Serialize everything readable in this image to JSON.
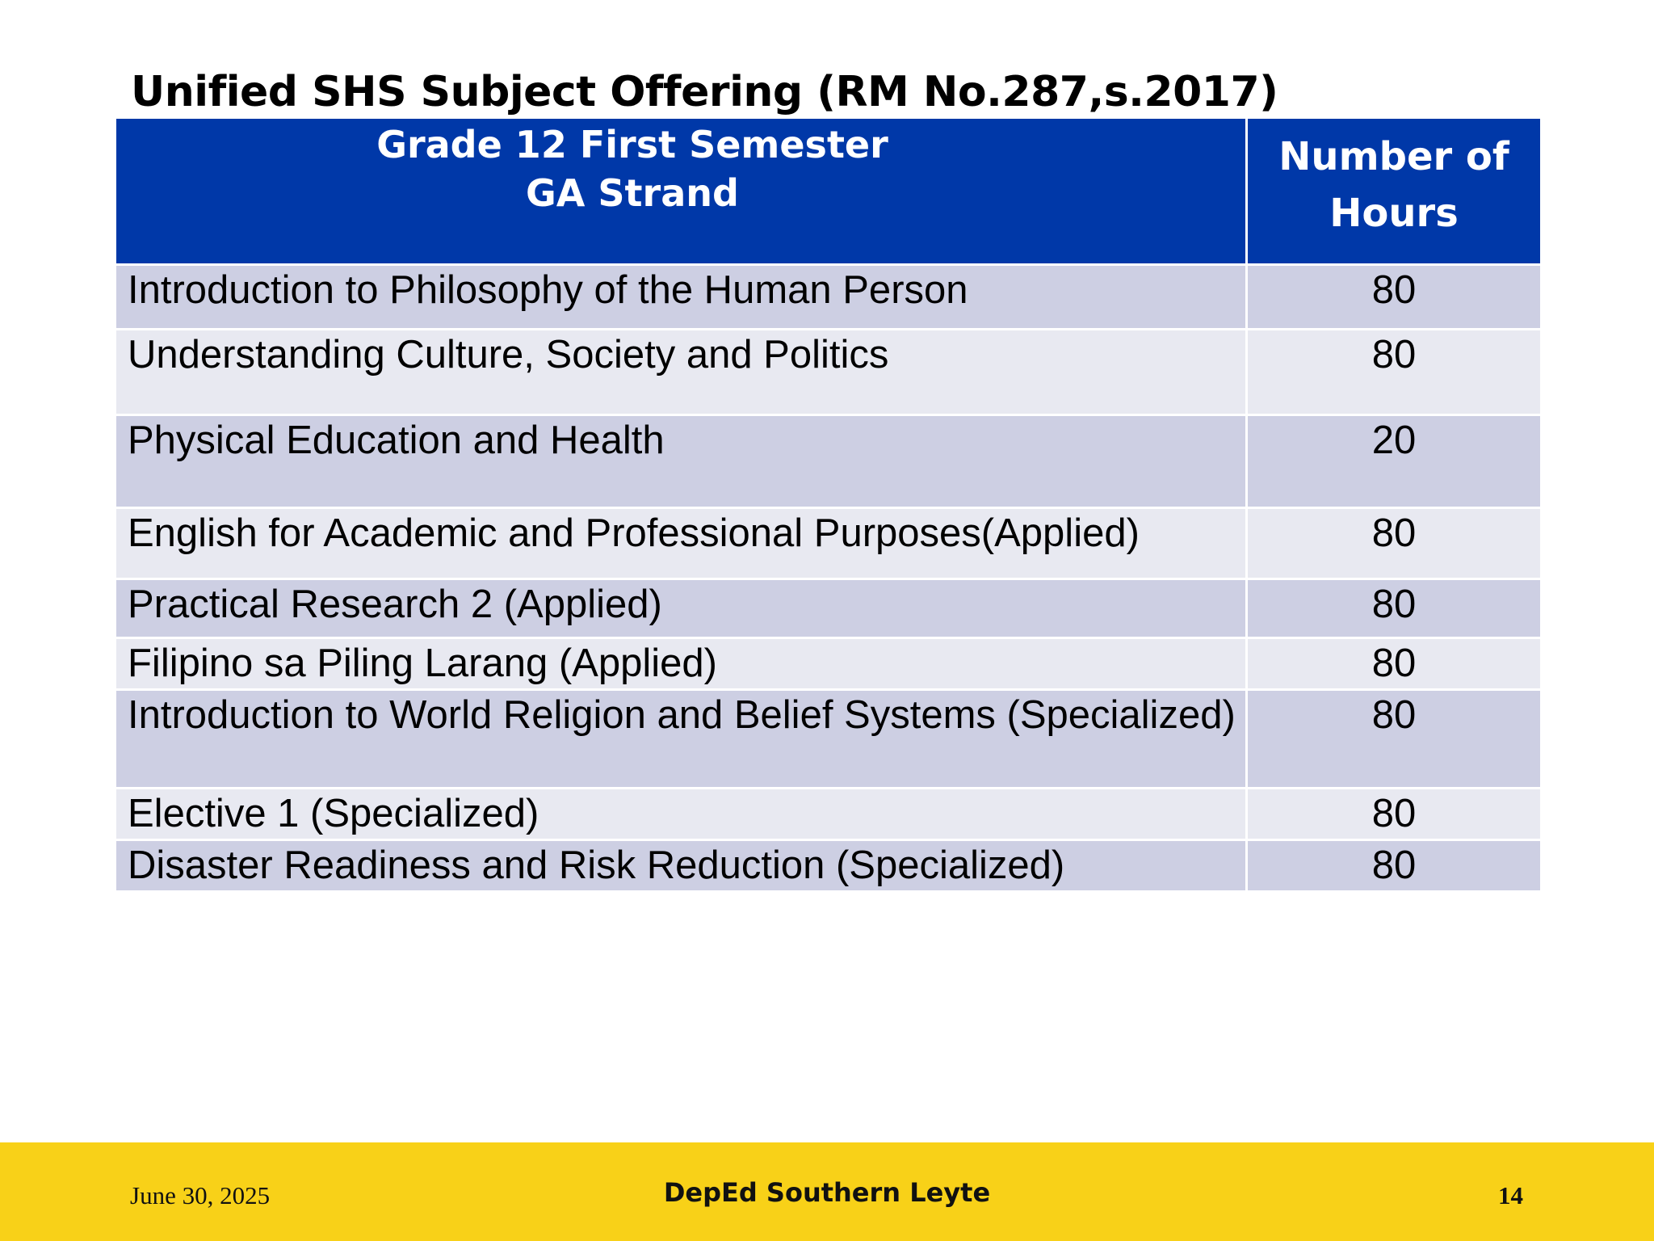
{
  "title": "Unified SHS Subject Offering (RM No.287,s.2017)",
  "table": {
    "header": {
      "subject_line1": "Grade 12 First Semester",
      "subject_line2": "GA Strand",
      "hours_line1": "Number of",
      "hours_line2": "Hours"
    },
    "rows": [
      {
        "subject": "Introduction to Philosophy of the Human Person",
        "hours": "80"
      },
      {
        "subject": "Understanding Culture, Society and Politics",
        "hours": "80"
      },
      {
        "subject": "Physical Education and Health",
        "hours": "20"
      },
      {
        "subject": "English for Academic and Professional Purposes(Applied)",
        "hours": "80"
      },
      {
        "subject": "Practical Research 2 (Applied)",
        "hours": "80"
      },
      {
        "subject": "Filipino sa Piling Larang (Applied)",
        "hours": "80"
      },
      {
        "subject": "Introduction to World Religion and Belief Systems (Specialized)",
        "hours": "80"
      },
      {
        "subject": "Elective 1 (Specialized)",
        "hours": "80"
      },
      {
        "subject": "Disaster Readiness and Risk Reduction (Specialized)",
        "hours": "80"
      }
    ]
  },
  "footer": {
    "date": "June 30, 2025",
    "organization": "DepEd Southern Leyte",
    "page_number": "14"
  },
  "colors": {
    "header_blue": "#0038a8",
    "row_dark": "#cdcfe3",
    "row_light": "#e8e9f1",
    "footer_yellow": "#f8d118"
  }
}
